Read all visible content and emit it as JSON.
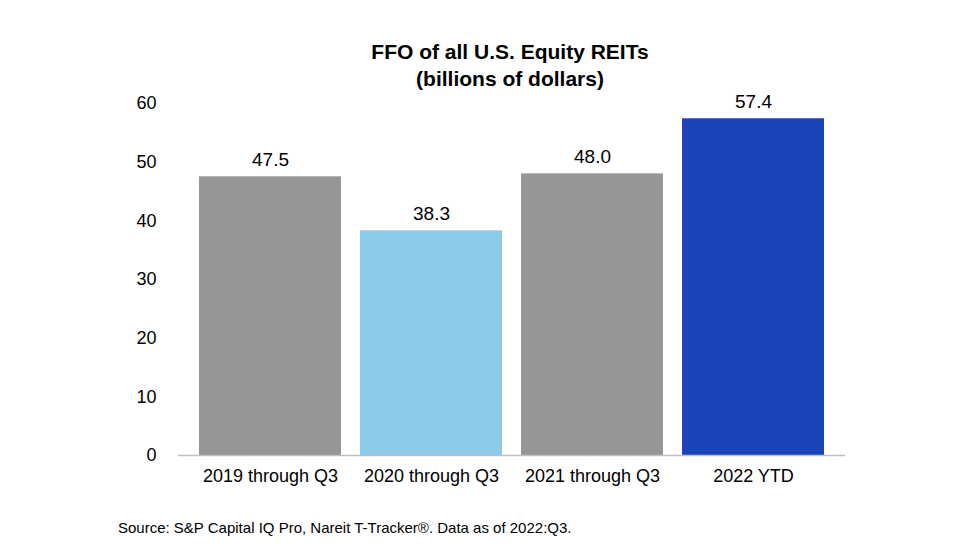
{
  "chart_data": {
    "type": "bar",
    "title": "FFO of all U.S. Equity REITs",
    "subtitle": "(billions of dollars)",
    "caption": "Source: S&P Capital IQ Pro, Nareit T-Tracker®. Data as of 2022:Q3.",
    "categories": [
      "2019 through Q3",
      "2020 through Q3",
      "2021 through Q3",
      "2022 YTD"
    ],
    "values": [
      47.5,
      38.3,
      48.0,
      57.4
    ],
    "value_labels": [
      "47.5",
      "38.3",
      "48.0",
      "57.4"
    ],
    "colors": [
      "#969696",
      "#8ecbe8",
      "#969696",
      "#1c44b8"
    ],
    "ylim": [
      0,
      60
    ],
    "yticks": [
      0,
      10,
      20,
      30,
      40,
      50,
      60
    ],
    "grid": false,
    "data_labels": true
  }
}
